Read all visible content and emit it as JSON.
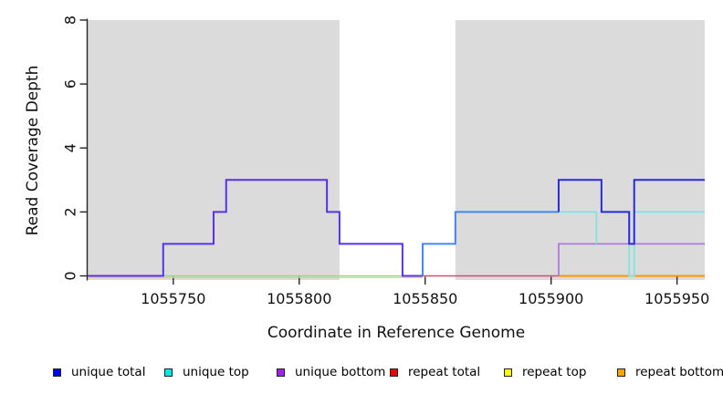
{
  "figure": {
    "band_color": "#DBDBDB",
    "axis_color": "#262626",
    "text_color": "#111111",
    "background": "#ffffff"
  },
  "chart_data": {
    "type": "line",
    "title": "",
    "xlabel": "Coordinate in Reference Genome",
    "ylabel": "Read Coverage Depth",
    "xlim": [
      1055716,
      1055961
    ],
    "ylim": [
      0,
      8
    ],
    "x_ticks": [
      1055750,
      1055800,
      1055850,
      1055900,
      1055950
    ],
    "y_ticks": [
      0,
      2,
      4,
      6,
      8
    ],
    "grid": false,
    "legend_position": "bottom",
    "shaded_regions": [
      {
        "x0": 1055716,
        "x1": 1055816
      },
      {
        "x0": 1055862,
        "x1": 1055961
      }
    ],
    "series": [
      {
        "name": "unique total",
        "color": "#0000EE",
        "steps": [
          [
            1055716,
            0
          ],
          [
            1055746,
            1
          ],
          [
            1055766,
            2
          ],
          [
            1055771,
            3
          ],
          [
            1055811,
            2
          ],
          [
            1055816,
            1
          ],
          [
            1055841,
            0
          ],
          [
            1055849,
            1
          ],
          [
            1055862,
            2
          ],
          [
            1055903,
            3
          ],
          [
            1055920,
            2
          ],
          [
            1055931,
            1
          ],
          [
            1055933,
            3
          ],
          [
            1055961,
            3
          ]
        ]
      },
      {
        "name": "unique top",
        "color": "#00E5E5",
        "steps": [
          [
            1055716,
            0
          ],
          [
            1055849,
            1
          ],
          [
            1055862,
            2
          ],
          [
            1055918,
            1
          ],
          [
            1055931,
            0
          ],
          [
            1055933,
            2
          ],
          [
            1055961,
            2
          ]
        ]
      },
      {
        "name": "unique bottom",
        "color": "#A020F0",
        "steps": [
          [
            1055716,
            0
          ],
          [
            1055746,
            1
          ],
          [
            1055766,
            2
          ],
          [
            1055771,
            3
          ],
          [
            1055811,
            2
          ],
          [
            1055816,
            1
          ],
          [
            1055841,
            0
          ],
          [
            1055903,
            1
          ],
          [
            1055961,
            1
          ]
        ]
      },
      {
        "name": "repeat total",
        "color": "#EE0000",
        "steps": [
          [
            1055716,
            0
          ],
          [
            1055961,
            0
          ]
        ]
      },
      {
        "name": "repeat top",
        "color": "#FFFF00",
        "steps": [
          [
            1055716,
            0
          ],
          [
            1055961,
            0
          ]
        ]
      },
      {
        "name": "repeat bottom",
        "color": "#FFA500",
        "steps": [
          [
            1055716,
            0
          ],
          [
            1055961,
            0
          ]
        ]
      }
    ],
    "rendered_segments": [
      {
        "name": "repeat-top-baseline",
        "color": "#E3CF6B",
        "width": 1.2,
        "dy": 1.8,
        "points": [
          [
            1055716,
            0
          ],
          [
            1055849,
            0
          ]
        ]
      },
      {
        "name": "zero-baseline-left-green",
        "color": "#90DC8F",
        "width": 1.6,
        "dy": 0,
        "points": [
          [
            1055716,
            0
          ],
          [
            1055849,
            0
          ]
        ]
      },
      {
        "name": "zero-baseline-mid-crimson",
        "color": "#C9536F",
        "width": 1.6,
        "dy": 0,
        "points": [
          [
            1055849,
            0
          ],
          [
            1055903,
            0
          ]
        ]
      },
      {
        "name": "zero-baseline-right-orange",
        "color": "#FF9400",
        "width": 2,
        "dy": 0,
        "points": [
          [
            1055903,
            0
          ],
          [
            1055961,
            0
          ]
        ]
      },
      {
        "name": "unique-bottom-right",
        "color": "#AE7BDB",
        "width": 1.8,
        "dy": 0,
        "points": [
          [
            1055903,
            0
          ],
          [
            1055903,
            1
          ],
          [
            1055961,
            1
          ]
        ]
      },
      {
        "name": "unique-top-right-a",
        "color": "#7EE4E4",
        "width": 1.8,
        "dy": 0,
        "points": [
          [
            1055903,
            2
          ],
          [
            1055918,
            2
          ],
          [
            1055918,
            1
          ]
        ]
      },
      {
        "name": "unique-top-right-b",
        "color": "#7EE4E4",
        "width": 1.8,
        "dy": 0,
        "points": [
          [
            1055931,
            1
          ],
          [
            1055931,
            0
          ],
          [
            1055933,
            0
          ],
          [
            1055933,
            2
          ],
          [
            1055961,
            2
          ]
        ]
      },
      {
        "name": "unique-total-bottom-left",
        "color": "#5633E6",
        "width": 2,
        "dy": 0,
        "points": [
          [
            1055716,
            0
          ],
          [
            1055746,
            0
          ],
          [
            1055746,
            1
          ],
          [
            1055766,
            1
          ],
          [
            1055766,
            2
          ],
          [
            1055771,
            2
          ],
          [
            1055771,
            3
          ],
          [
            1055811,
            3
          ],
          [
            1055811,
            2
          ],
          [
            1055816,
            2
          ],
          [
            1055816,
            1
          ],
          [
            1055841,
            1
          ],
          [
            1055841,
            0
          ],
          [
            1055849,
            0
          ]
        ]
      },
      {
        "name": "unique-total-top-mid",
        "color": "#4285F5",
        "width": 2,
        "dy": 0,
        "points": [
          [
            1055849,
            0
          ],
          [
            1055849,
            1
          ],
          [
            1055862,
            1
          ],
          [
            1055862,
            2
          ],
          [
            1055903,
            2
          ]
        ]
      },
      {
        "name": "unique-total-right",
        "color": "#2A2ADC",
        "width": 2,
        "dy": 0,
        "points": [
          [
            1055903,
            2
          ],
          [
            1055903,
            3
          ],
          [
            1055920,
            3
          ],
          [
            1055920,
            2
          ],
          [
            1055931,
            2
          ],
          [
            1055931,
            1
          ],
          [
            1055933,
            1
          ],
          [
            1055933,
            3
          ],
          [
            1055961,
            3
          ]
        ]
      }
    ],
    "legend": [
      {
        "label": "unique total",
        "color": "#0000EE"
      },
      {
        "label": "unique top",
        "color": "#00E5E5"
      },
      {
        "label": "unique bottom",
        "color": "#A020F0"
      },
      {
        "label": "repeat total",
        "color": "#EE0000"
      },
      {
        "label": "repeat top",
        "color": "#FFFF00"
      },
      {
        "label": "repeat bottom",
        "color": "#FFA500"
      }
    ]
  }
}
